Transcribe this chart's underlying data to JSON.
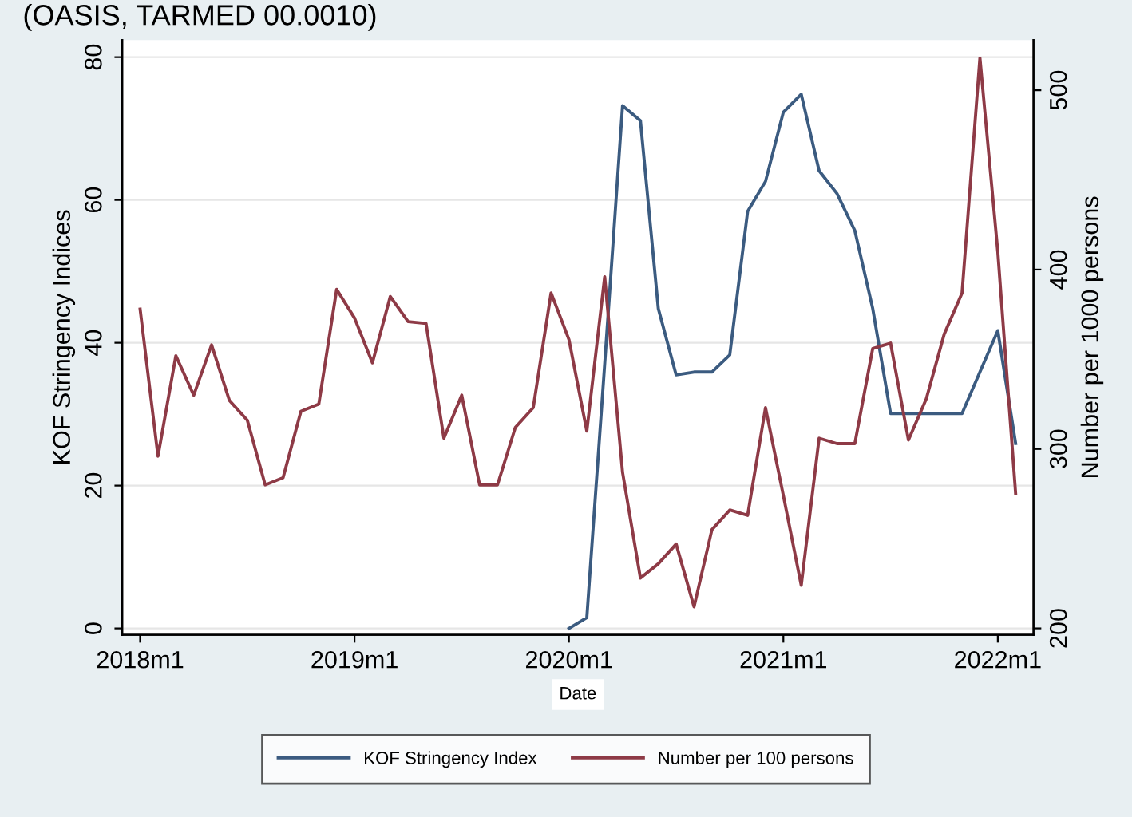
{
  "chart_data": {
    "type": "line",
    "title": "(OASIS, TARMED 00.0010)",
    "xlabel": "Date",
    "ylabel": "KOF Stringency Indices",
    "y2label": "Number per 1000 persons",
    "x": [
      "2018-01",
      "2018-02",
      "2018-03",
      "2018-04",
      "2018-05",
      "2018-06",
      "2018-07",
      "2018-08",
      "2018-09",
      "2018-10",
      "2018-11",
      "2018-12",
      "2019-01",
      "2019-02",
      "2019-03",
      "2019-04",
      "2019-05",
      "2019-06",
      "2019-07",
      "2019-08",
      "2019-09",
      "2019-10",
      "2019-11",
      "2019-12",
      "2020-01",
      "2020-02",
      "2020-03",
      "2020-04",
      "2020-05",
      "2020-06",
      "2020-07",
      "2020-08",
      "2020-09",
      "2020-10",
      "2020-11",
      "2020-12",
      "2021-01",
      "2021-02",
      "2021-03",
      "2021-04",
      "2021-05",
      "2021-06",
      "2021-07",
      "2021-08",
      "2021-09",
      "2021-10",
      "2021-11",
      "2021-12",
      "2022-01",
      "2022-02"
    ],
    "series": [
      {
        "name": "KOF Stringency Index",
        "color": "#3b5b80",
        "x": [
          "2020-01",
          "2020-02",
          "2020-03",
          "2020-04",
          "2020-05",
          "2020-06",
          "2020-07",
          "2020-08",
          "2020-09",
          "2020-10",
          "2020-11",
          "2020-12",
          "2021-01",
          "2021-02",
          "2021-03",
          "2021-04",
          "2021-05",
          "2021-06",
          "2021-07",
          "2021-08",
          "2021-09",
          "2021-10",
          "2021-11",
          "2021-12",
          "2022-01",
          "2022-02"
        ],
        "values": [
          0,
          1.5,
          37,
          73.2,
          71.1,
          44.8,
          35.5,
          35.9,
          35.9,
          38.3,
          58.4,
          62.6,
          72.3,
          74.8,
          64.1,
          60.9,
          55.7,
          44.8,
          30.1,
          30.1,
          30.1,
          30.1,
          30.1,
          35.9,
          41.7,
          25.9
        ]
      },
      {
        "name": "Number per 100 persons",
        "color": "#8e3a46",
        "axis": "y2",
        "values": [
          378,
          296,
          352,
          330,
          358,
          327,
          316,
          280,
          284,
          321,
          325,
          389,
          373,
          348,
          385,
          371,
          370,
          306,
          330,
          280,
          280,
          312,
          323,
          387,
          361,
          310,
          396,
          287,
          228,
          236,
          247,
          212,
          255,
          266,
          263,
          323,
          274,
          224,
          306,
          303,
          303,
          356,
          359,
          305,
          328,
          364,
          387,
          518,
          410,
          275
        ]
      }
    ],
    "xlim": [
      "2017-12",
      "2022-03"
    ],
    "xticks": [
      {
        "value": "2018-01",
        "label": "2018m1"
      },
      {
        "value": "2019-01",
        "label": "2019m1"
      },
      {
        "value": "2020-01",
        "label": "2020m1"
      },
      {
        "value": "2021-01",
        "label": "2021m1"
      },
      {
        "value": "2022-01",
        "label": "2022m1"
      }
    ],
    "ylim": [
      -0.9,
      82.4
    ],
    "yticks": [
      0,
      20,
      40,
      60,
      80
    ],
    "y2lim": [
      196.4,
      528
    ],
    "y2ticks": [
      200,
      300,
      400,
      500
    ],
    "grid": "y",
    "legend": "bottom",
    "line_style": "solid",
    "marker": "none"
  }
}
